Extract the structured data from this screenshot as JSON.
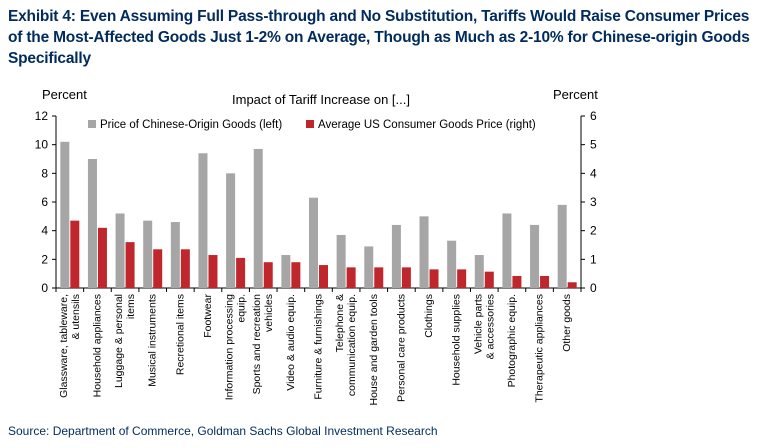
{
  "exhibit_title": "Exhibit 4: Even Assuming Full Pass-through and No Substitution, Tariffs Would Raise Consumer Prices of the Most-Affected Goods Just 1-2% on Average, Though as Much as 2-10% for Chinese-origin Goods Specifically",
  "source": "Source: Department of Commerce, Goldman Sachs Global Investment Research",
  "colors": {
    "series_left": "#a6a6a6",
    "series_right": "#c0272d",
    "title": "#002b5c"
  },
  "chart_data": {
    "type": "bar",
    "title": "Impact of Tariff Increase on [...]",
    "ylabel_left": "Percent",
    "ylabel_right": "Percent",
    "ylim_left": [
      0,
      12
    ],
    "ylim_right": [
      0,
      6
    ],
    "yticks_left": [
      "0",
      "2",
      "4",
      "6",
      "8",
      "10",
      "12"
    ],
    "yticks_right": [
      "0",
      "1",
      "2",
      "3",
      "4",
      "5",
      "6"
    ],
    "grid": false,
    "legend_position": "top-left",
    "categories": [
      [
        "Glassware, tableware,",
        "& utensils"
      ],
      [
        "Household appliances"
      ],
      [
        "Luggage & personal",
        "items"
      ],
      [
        "Musical instruments"
      ],
      [
        "Recretional items"
      ],
      [
        "Footwear"
      ],
      [
        "Information processing",
        "equip."
      ],
      [
        "Sports and recreation",
        "vehicles"
      ],
      [
        "Video & audio equip."
      ],
      [
        "Furniture & furnishings"
      ],
      [
        "Telephone &",
        "communication equip."
      ],
      [
        "House and garden tools"
      ],
      [
        "Personal care products"
      ],
      [
        "Clothings"
      ],
      [
        "Household supplies"
      ],
      [
        "Vehicle parts",
        "& accessories"
      ],
      [
        "Photographic equip."
      ],
      [
        "Therapeutic appliances"
      ],
      [
        "Other goods"
      ]
    ],
    "series": [
      {
        "name": "Price of Chinese-Origin Goods (left)",
        "axis": "left",
        "values": [
          10.2,
          9.0,
          5.2,
          4.7,
          4.6,
          9.4,
          8.0,
          9.7,
          2.3,
          6.3,
          3.7,
          2.9,
          4.4,
          5.0,
          3.3,
          2.3,
          5.2,
          4.4,
          5.8
        ]
      },
      {
        "name": "Average US Consumer Goods Price (right)",
        "axis": "right",
        "values": [
          2.35,
          2.1,
          1.6,
          1.35,
          1.35,
          1.15,
          1.05,
          0.9,
          0.9,
          0.8,
          0.72,
          0.72,
          0.72,
          0.65,
          0.65,
          0.57,
          0.42,
          0.42,
          0.2
        ]
      }
    ]
  }
}
